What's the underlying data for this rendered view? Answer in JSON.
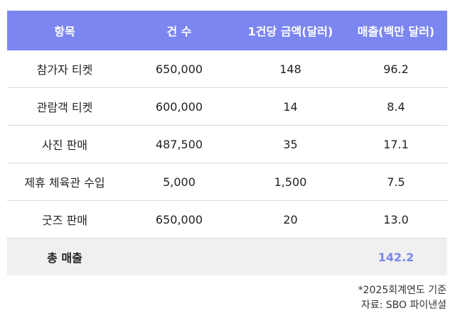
{
  "table": {
    "headers": [
      "항목",
      "건 수",
      "1건당 금액(달러)",
      "매출(백만 달러)"
    ],
    "rows": [
      [
        "참가자 티켓",
        "650,000",
        "148",
        "96.2"
      ],
      [
        "관람객 티켓",
        "600,000",
        "14",
        "8.4"
      ],
      [
        "사진 판매",
        "487,500",
        "35",
        "17.1"
      ],
      [
        "제휴 체육관 수입",
        "5,000",
        "1,500",
        "7.5"
      ],
      [
        "굿즈 판매",
        "650,000",
        "20",
        "13.0"
      ]
    ],
    "total": {
      "label": "총 매출",
      "value": "142.2"
    }
  },
  "notes": {
    "fiscal_year": "*2025회계연도 기준",
    "source": "자료: SBO 파이낸셜"
  },
  "colors": {
    "header_bg": "#7b86f0",
    "total_bg": "#f0f0f0",
    "accent": "#7b86f0"
  }
}
